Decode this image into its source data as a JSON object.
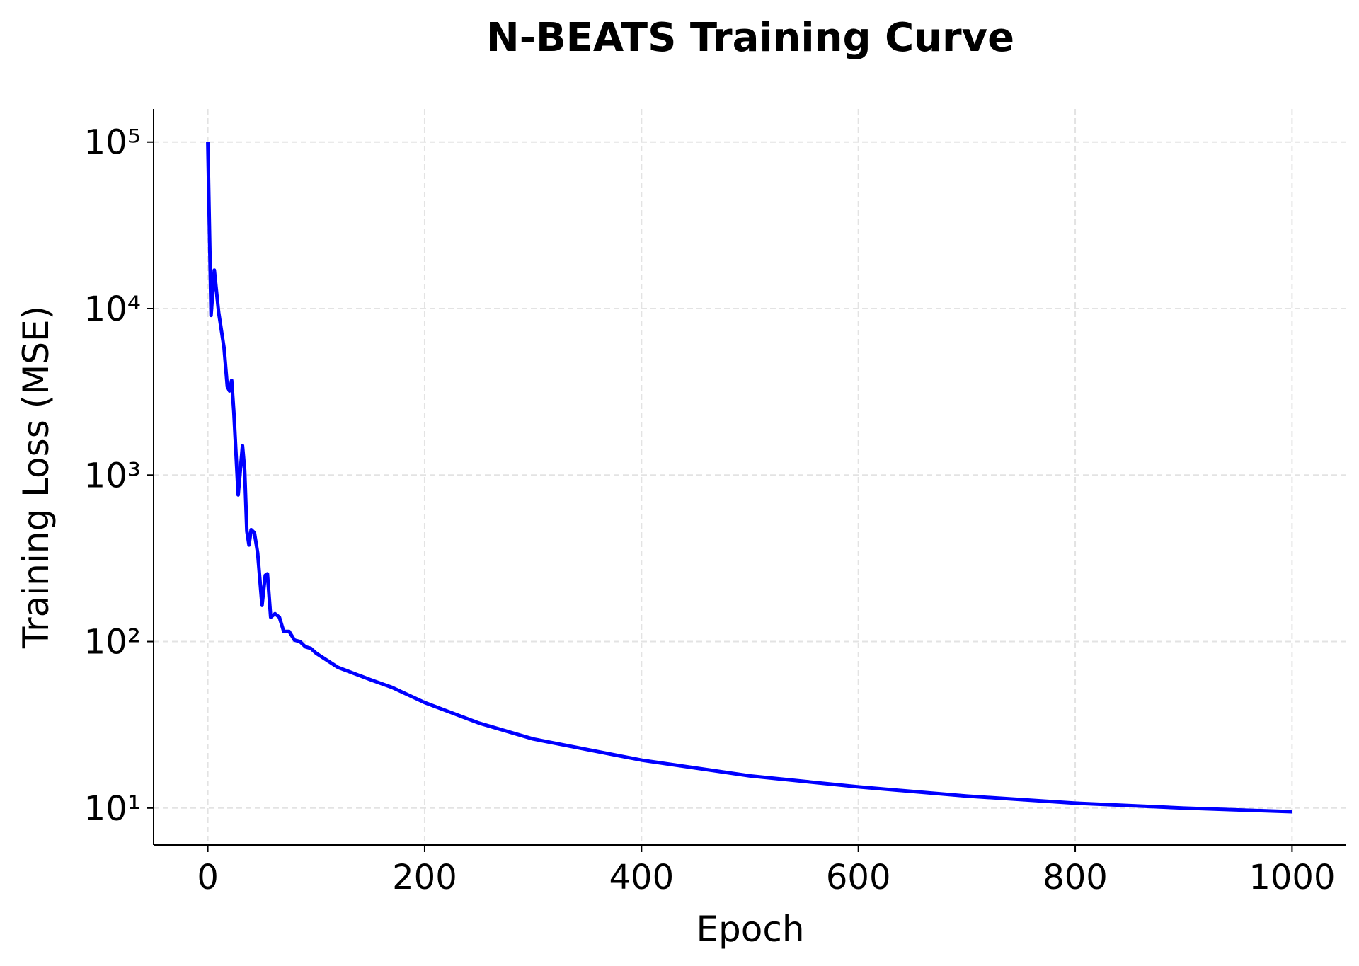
{
  "chart_data": {
    "type": "line",
    "title": "N-BEATS Training Curve",
    "x_label": "Epoch",
    "y_label": "Training Loss (MSE)",
    "x": [
      0,
      3,
      6,
      10,
      15,
      18,
      20,
      22,
      24,
      28,
      30,
      32,
      34,
      36,
      38,
      40,
      43,
      46,
      50,
      53,
      55,
      58,
      62,
      66,
      70,
      75,
      80,
      85,
      90,
      95,
      100,
      120,
      150,
      170,
      200,
      250,
      300,
      400,
      500,
      600,
      700,
      800,
      900,
      1000
    ],
    "series": [
      {
        "name": "Training Loss",
        "color": "#0000ff",
        "values": [
          100000,
          9100,
          17000,
          9500,
          5800,
          3400,
          3200,
          3700,
          2400,
          760,
          1070,
          1500,
          1070,
          460,
          380,
          470,
          450,
          340,
          165,
          250,
          255,
          140,
          147,
          140,
          115,
          115,
          102,
          100,
          93,
          91,
          85,
          70,
          59,
          53,
          43,
          32.4,
          26,
          19.4,
          15.6,
          13.4,
          11.8,
          10.7,
          10,
          9.5
        ]
      }
    ],
    "xlim": [
      -50,
      1050
    ],
    "xticks": [
      0,
      200,
      400,
      600,
      800,
      1000
    ],
    "ylim": [
      6,
      158000
    ],
    "yscale": "log",
    "yticks": [
      {
        "value": 10,
        "label": "10¹"
      },
      {
        "value": 100,
        "label": "10²"
      },
      {
        "value": 1000,
        "label": "10³"
      },
      {
        "value": 10000,
        "label": "10⁴"
      },
      {
        "value": 100000,
        "label": "10⁵"
      }
    ],
    "grid": true
  }
}
